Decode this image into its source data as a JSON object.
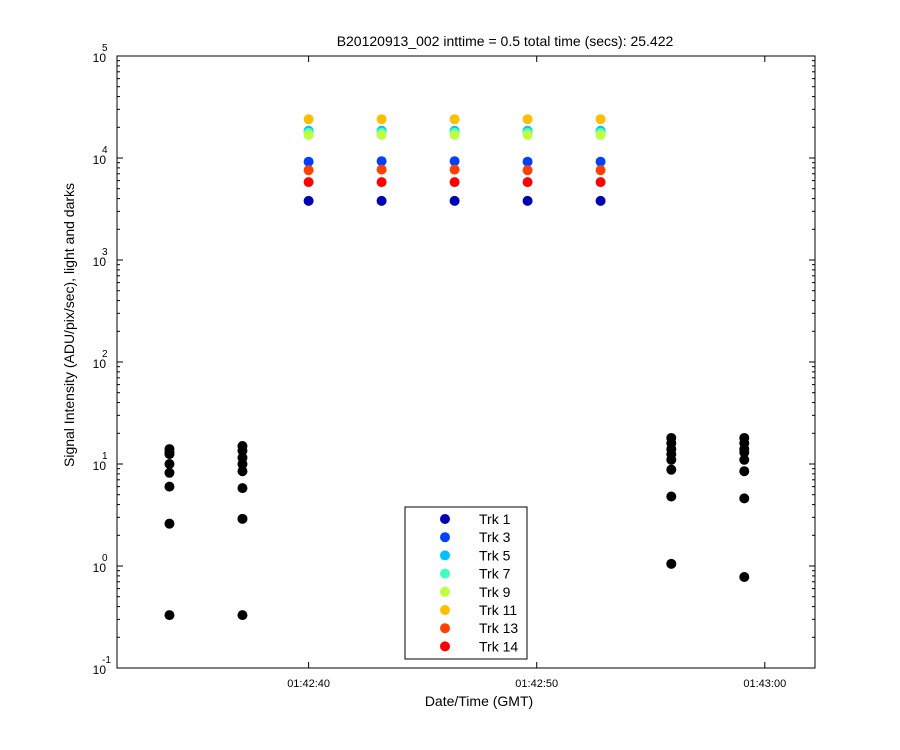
{
  "chart_data": {
    "type": "scatter",
    "title": "B20120913_002 inttime = 0.5 total time (secs): 25.422",
    "xlabel": "Date/Time (GMT)",
    "ylabel": "Signal Intensity (ADU/pix/sec), light and darks",
    "xlim": [
      "01:42:31.6",
      "01:43:02.2"
    ],
    "ylim": [
      0.1,
      100000
    ],
    "y_scale": "log",
    "grid": false,
    "legend_position": "bottom-center",
    "x_ticks": [
      "01:42:40",
      "01:42:50",
      "01:43:00"
    ],
    "y_ticks": [
      {
        "value": 0.1,
        "base": "10",
        "exp": "-1"
      },
      {
        "value": 1,
        "base": "10",
        "exp": "0"
      },
      {
        "value": 10,
        "base": "10",
        "exp": "1"
      },
      {
        "value": 100,
        "base": "10",
        "exp": "2"
      },
      {
        "value": 1000,
        "base": "10",
        "exp": "3"
      },
      {
        "value": 10000,
        "base": "10",
        "exp": "4"
      },
      {
        "value": 100000,
        "base": "10",
        "exp": "5"
      }
    ],
    "series": [
      {
        "name": "Trk 1",
        "color": "#0000b4",
        "x": [
          "01:42:40.0",
          "01:42:43.2",
          "01:42:46.4",
          "01:42:49.6",
          "01:42:52.8"
        ],
        "y": [
          3800,
          3800,
          3800,
          3800,
          3800
        ]
      },
      {
        "name": "Trk 3",
        "color": "#0040ff",
        "x": [
          "01:42:40.0",
          "01:42:43.2",
          "01:42:46.4",
          "01:42:49.6",
          "01:42:52.8"
        ],
        "y": [
          9200,
          9300,
          9300,
          9200,
          9200
        ]
      },
      {
        "name": "Trk 5",
        "color": "#00c0ff",
        "x": [
          "01:42:40.0",
          "01:42:43.2",
          "01:42:46.4",
          "01:42:49.6",
          "01:42:52.8"
        ],
        "y": [
          18500,
          18500,
          18500,
          18500,
          18500
        ]
      },
      {
        "name": "Trk 7",
        "color": "#40ffbf",
        "x": [
          "01:42:40.0",
          "01:42:43.2",
          "01:42:46.4",
          "01:42:49.6",
          "01:42:52.8"
        ],
        "y": [
          17700,
          17700,
          17700,
          17700,
          17700
        ]
      },
      {
        "name": "Trk 9",
        "color": "#bfff40",
        "x": [
          "01:42:40.0",
          "01:42:43.2",
          "01:42:46.4",
          "01:42:49.6",
          "01:42:52.8"
        ],
        "y": [
          16800,
          16800,
          16800,
          16800,
          16800
        ]
      },
      {
        "name": "Trk 11",
        "color": "#ffbf00",
        "x": [
          "01:42:40.0",
          "01:42:43.2",
          "01:42:46.4",
          "01:42:49.6",
          "01:42:52.8"
        ],
        "y": [
          24000,
          24000,
          24000,
          24000,
          24000
        ]
      },
      {
        "name": "Trk 13",
        "color": "#ff4000",
        "x": [
          "01:42:40.0",
          "01:42:43.2",
          "01:42:46.4",
          "01:42:49.6",
          "01:42:52.8"
        ],
        "y": [
          7600,
          7700,
          7700,
          7600,
          7600
        ]
      },
      {
        "name": "Trk 14",
        "color": "#ff0000",
        "x": [
          "01:42:40.0",
          "01:42:43.2",
          "01:42:46.4",
          "01:42:49.6",
          "01:42:52.8"
        ],
        "y": [
          5800,
          5800,
          5800,
          5800,
          5800
        ]
      }
    ],
    "darks": {
      "color": "#000000",
      "x": [
        "01:42:33.9",
        "01:42:33.9",
        "01:42:33.9",
        "01:42:33.9",
        "01:42:33.9",
        "01:42:33.9",
        "01:42:33.9",
        "01:42:33.9",
        "01:42:37.1",
        "01:42:37.1",
        "01:42:37.1",
        "01:42:37.1",
        "01:42:37.1",
        "01:42:37.1",
        "01:42:37.1",
        "01:42:37.1",
        "01:42:55.9",
        "01:42:55.9",
        "01:42:55.9",
        "01:42:55.9",
        "01:42:55.9",
        "01:42:55.9",
        "01:42:55.9",
        "01:42:55.9",
        "01:42:59.1",
        "01:42:59.1",
        "01:42:59.1",
        "01:42:59.1",
        "01:42:59.1",
        "01:42:59.1",
        "01:42:59.1",
        "01:42:59.1"
      ],
      "y": [
        14,
        12.5,
        10,
        8.2,
        6,
        2.6,
        0.33,
        13,
        15,
        13.5,
        11.5,
        10,
        8.5,
        5.8,
        2.9,
        0.33,
        18,
        16,
        14,
        11,
        8.8,
        4.8,
        1.05,
        12.5,
        18,
        16,
        14,
        11,
        8.5,
        4.6,
        0.78,
        13
      ]
    }
  }
}
